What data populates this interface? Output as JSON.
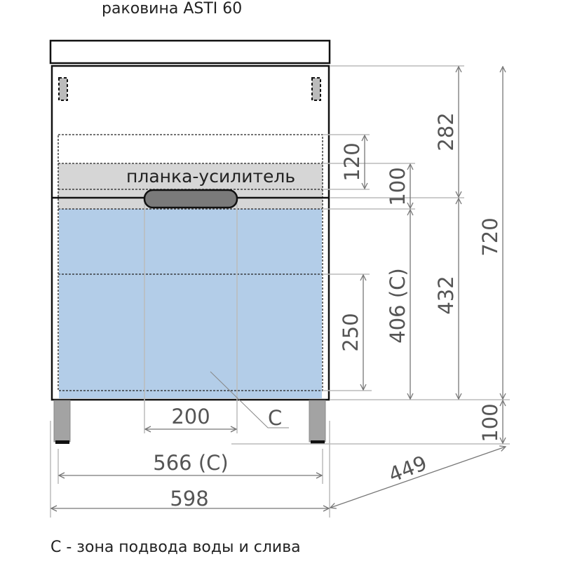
{
  "title": "раковина ASTI 60",
  "caption": "С - зона подвода воды и слива",
  "labels": {
    "reinforcement_bar": "планка-усилитель",
    "zone": "С"
  },
  "dimensions": {
    "d120": "120",
    "d100_bar": "100",
    "d282": "282",
    "d720": "720",
    "d406": "406 (С)",
    "d432": "432",
    "d250": "250",
    "d100_legs": "100",
    "d200": "200",
    "d566": "566 (С)",
    "d598": "598",
    "d449": "449"
  },
  "colors": {
    "zone_fill": "#b3cde8",
    "bar_fill": "#d6d6d6",
    "handle_fill": "#7a7a7a",
    "leg_fill": "#a3a3a3"
  }
}
